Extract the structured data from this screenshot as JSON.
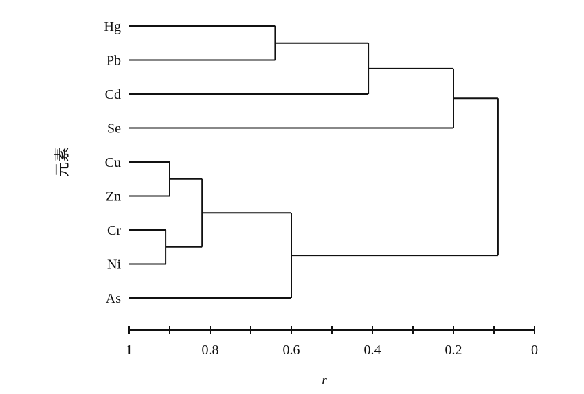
{
  "chart_data": {
    "type": "dendrogram",
    "xlabel": "r",
    "ylabel": "元素",
    "xlim": [
      1,
      0
    ],
    "ticks": [
      1,
      0.9,
      0.8,
      0.7,
      0.6,
      0.5,
      0.4,
      0.3,
      0.2,
      0.1,
      0
    ],
    "tick_labels": [
      {
        "value": 1,
        "label": "1"
      },
      {
        "value": 0.8,
        "label": "0.8"
      },
      {
        "value": 0.6,
        "label": "0.6"
      },
      {
        "value": 0.4,
        "label": "0.4"
      },
      {
        "value": 0.2,
        "label": "0.2"
      },
      {
        "value": 0,
        "label": "0"
      }
    ],
    "leaves": [
      "Hg",
      "Pb",
      "Cd",
      "Se",
      "Cu",
      "Zn",
      "Cr",
      "Ni",
      "As"
    ],
    "merges": [
      {
        "id": "m1",
        "children": [
          "Hg",
          "Pb"
        ],
        "r": 0.64
      },
      {
        "id": "m2",
        "children": [
          "m1",
          "Cd"
        ],
        "r": 0.41
      },
      {
        "id": "m3",
        "children": [
          "m2",
          "Se"
        ],
        "r": 0.2
      },
      {
        "id": "m4",
        "children": [
          "Cu",
          "Zn"
        ],
        "r": 0.9
      },
      {
        "id": "m5",
        "children": [
          "Cr",
          "Ni"
        ],
        "r": 0.91
      },
      {
        "id": "m6",
        "children": [
          "m4",
          "m5"
        ],
        "r": 0.82
      },
      {
        "id": "m7",
        "children": [
          "m6",
          "As"
        ],
        "r": 0.6
      },
      {
        "id": "m8",
        "children": [
          "m3",
          "m7"
        ],
        "r": 0.09
      }
    ]
  }
}
